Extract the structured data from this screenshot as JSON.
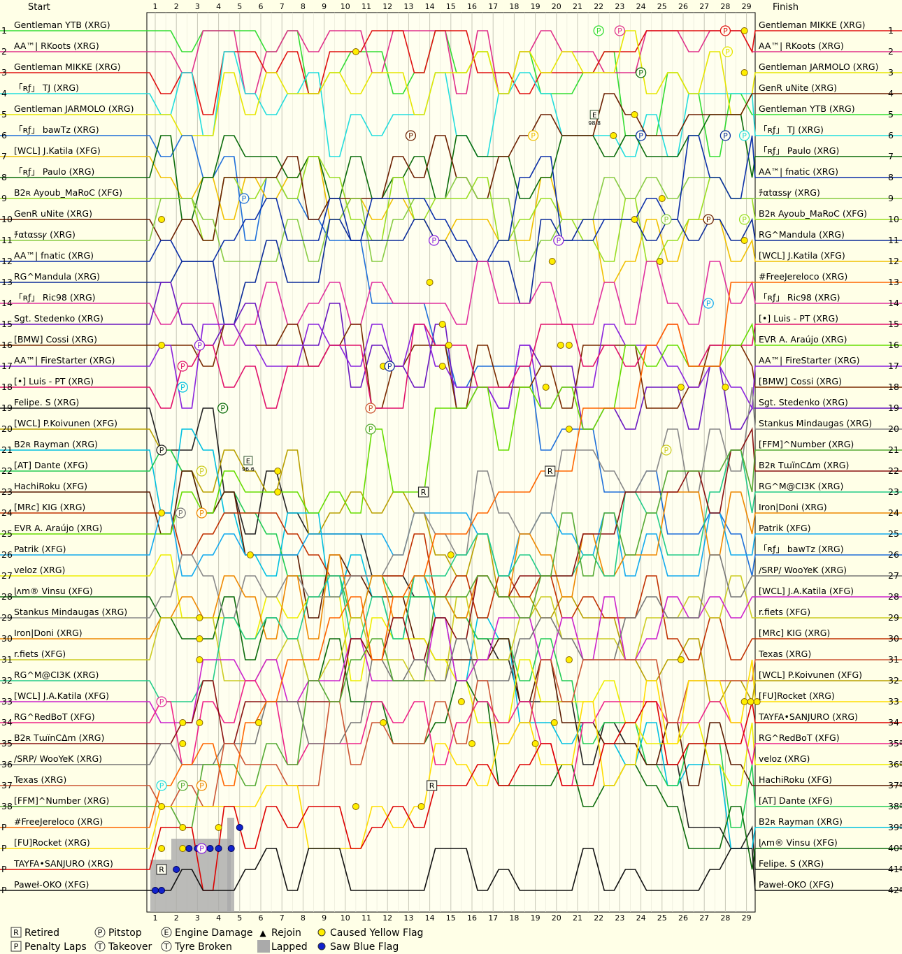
{
  "chart_data": {
    "type": "line",
    "title": "",
    "header": {
      "start": "Start",
      "finish": "Finish"
    },
    "laps": 29,
    "lap_labels": [
      "1",
      "2",
      "3",
      "4",
      "5",
      "6",
      "7",
      "8",
      "9",
      "10",
      "11",
      "12",
      "13",
      "14",
      "15",
      "16",
      "17",
      "18",
      "19",
      "20",
      "21",
      "22",
      "23",
      "24",
      "25",
      "26",
      "27",
      "28",
      "29"
    ],
    "start_positions": [
      "1",
      "2",
      "3",
      "4",
      "5",
      "6",
      "7",
      "8",
      "9",
      "10",
      "11",
      "12",
      "13",
      "14",
      "15",
      "16",
      "17",
      "18",
      "19",
      "20",
      "21",
      "22",
      "23",
      "24",
      "25",
      "26",
      "27",
      "28",
      "29",
      "30",
      "31",
      "32",
      "33",
      "34",
      "35",
      "36",
      "37",
      "38",
      "P",
      "P",
      "P",
      "P"
    ],
    "finish_positions": [
      "1",
      "2",
      "3",
      "4",
      "5",
      "6",
      "7",
      "8",
      "9",
      "10",
      "11",
      "12",
      "13",
      "14",
      "15",
      "16",
      "17",
      "18",
      "19",
      "20",
      "21",
      "22",
      "23",
      "24",
      "25",
      "26",
      "27",
      "28",
      "29",
      "30",
      "31",
      "32",
      "33",
      "34",
      "35ª",
      "36ª",
      "37ª",
      "38ª",
      "39ª",
      "40ª",
      "41ª",
      "42ª"
    ],
    "start_grid": [
      {
        "name": "Gentleman YTB (XRG)",
        "color": "#33dd33"
      },
      {
        "name": "AA™| RKoots (XRG)",
        "color": "#e0308a"
      },
      {
        "name": "Gentleman MIKKE (XRG)",
        "color": "#e01010"
      },
      {
        "name": "「ʀƒ」 TJ (XRG)",
        "color": "#22dddd"
      },
      {
        "name": "Gentleman JARMOLO (XRG)",
        "color": "#e6e600"
      },
      {
        "name": "「ʀƒ」 bawTz (XRG)",
        "color": "#1e6fd9"
      },
      {
        "name": "[WCL] J.Katila (XFG)",
        "color": "#f0c000"
      },
      {
        "name": "「ʀƒ」 Paulo (XRG)",
        "color": "#0a6b0a"
      },
      {
        "name": "B2ʀ Ayoub_MaRoC (XFG)",
        "color": "#99dd22"
      },
      {
        "name": "GenR uNite (XRG)",
        "color": "#6b1f00"
      },
      {
        "name": "ﾁαtαssꝩ (XRG)",
        "color": "#88cc44"
      },
      {
        "name": "AA™| fnatic (XRG)",
        "color": "#0b2fa8"
      },
      {
        "name": "RG^Mandula (XRG)",
        "color": "#0b2b99"
      },
      {
        "name": "「ʀƒ」 Ric98 (XRG)",
        "color": "#e0309e"
      },
      {
        "name": "Sgt. Stedenko (XRG)",
        "color": "#6a17c0"
      },
      {
        "name": "[BMW] Cossi (XRG)",
        "color": "#7a2a00"
      },
      {
        "name": "AA™| FireStarter (XRG)",
        "color": "#8a22dd"
      },
      {
        "name": "[•] Luis - PT (XRG)",
        "color": "#e0106a"
      },
      {
        "name": "Felipe. S (XRG)",
        "color": "#222222"
      },
      {
        "name": "[WCL] P.Koivunen (XFG)",
        "color": "#b8a000"
      },
      {
        "name": "B2ʀ Rayman (XRG)",
        "color": "#00c0e0"
      },
      {
        "name": "[AT] Dante (XFG)",
        "color": "#22cc55"
      },
      {
        "name": "HachiRoku (XFG)",
        "color": "#5a1a00"
      },
      {
        "name": "[MRc] KIG (XRG)",
        "color": "#c03000"
      },
      {
        "name": "EVR A. Araújo (XRG)",
        "color": "#66dd00"
      },
      {
        "name": "Patrik (XFG)",
        "color": "#11aaee"
      },
      {
        "name": "veloz (XRG)",
        "color": "#eeee00"
      },
      {
        "name": "ɭʌm® Vinsu (XFG)",
        "color": "#0b6b0b"
      },
      {
        "name": "Stankus Mindaugas (XRG)",
        "color": "#888888"
      },
      {
        "name": "Iron|Doni (XRG)",
        "color": "#ee8800"
      },
      {
        "name": "r.fiets (XFG)",
        "color": "#cccc22"
      },
      {
        "name": "RG^M@CI3K (XRG)",
        "color": "#22cc88"
      },
      {
        "name": "[WCL] J.A.Katila (XFG)",
        "color": "#cc22cc"
      },
      {
        "name": "RG^RedBoT (XFG)",
        "color": "#ee2288"
      },
      {
        "name": "B2ʀ TɯïnCΔm (XRG)",
        "color": "#8a1010"
      },
      {
        "name": "/SRP/ WooYeK (XRG)",
        "color": "#777777"
      },
      {
        "name": "Texas (XRG)",
        "color": "#cc5533"
      },
      {
        "name": "[FFM]^Number (XRG)",
        "color": "#55aa33"
      },
      {
        "name": "#FreeJereloco (XRG)",
        "color": "#ff6600"
      },
      {
        "name": "[FU]Rocket (XRG)",
        "color": "#ffdd00"
      },
      {
        "name": "TAYFA•SANJURO (XRG)",
        "color": "#dd0000"
      },
      {
        "name": "Paweł-OKO (XFG)",
        "color": "#111111"
      }
    ],
    "finish_order": [
      {
        "name": "Gentleman MIKKE (XRG)",
        "color": "#e01010"
      },
      {
        "name": "AA™| RKoots (XRG)",
        "color": "#e0308a"
      },
      {
        "name": "Gentleman JARMOLO (XRG)",
        "color": "#e6e600"
      },
      {
        "name": "GenR uNite (XRG)",
        "color": "#6b1f00"
      },
      {
        "name": "Gentleman YTB (XRG)",
        "color": "#33dd33"
      },
      {
        "name": "「ʀƒ」 TJ (XRG)",
        "color": "#22dddd"
      },
      {
        "name": "「ʀƒ」 Paulo (XRG)",
        "color": "#0a6b0a"
      },
      {
        "name": "AA™| fnatic (XRG)",
        "color": "#0b2fa8"
      },
      {
        "name": "ﾁαtαssꝩ (XRG)",
        "color": "#88cc44"
      },
      {
        "name": "B2ʀ Ayoub_MaRoC (XFG)",
        "color": "#99dd22"
      },
      {
        "name": "RG^Mandula (XRG)",
        "color": "#0b2b99"
      },
      {
        "name": "[WCL] J.Katila (XFG)",
        "color": "#f0c000"
      },
      {
        "name": "#FreeJereloco (XRG)",
        "color": "#ff6600"
      },
      {
        "name": "「ʀƒ」 Ric98 (XRG)",
        "color": "#e0309e"
      },
      {
        "name": "[•] Luis - PT (XRG)",
        "color": "#e0106a"
      },
      {
        "name": "EVR A. Araújo (XRG)",
        "color": "#66dd00"
      },
      {
        "name": "AA™| FireStarter (XRG)",
        "color": "#8a22dd"
      },
      {
        "name": "[BMW] Cossi (XRG)",
        "color": "#7a2a00"
      },
      {
        "name": "Sgt. Stedenko (XRG)",
        "color": "#6a17c0"
      },
      {
        "name": "Stankus Mindaugas (XRG)",
        "color": "#888888"
      },
      {
        "name": "[FFM]^Number (XRG)",
        "color": "#55aa33"
      },
      {
        "name": "B2ʀ TɯïnCΔm (XRG)",
        "color": "#8a1010"
      },
      {
        "name": "RG^M@CI3K (XRG)",
        "color": "#22cc88"
      },
      {
        "name": "Iron|Doni (XRG)",
        "color": "#ee8800"
      },
      {
        "name": "Patrik (XFG)",
        "color": "#11aaee"
      },
      {
        "name": "「ʀƒ」 bawTz (XRG)",
        "color": "#1e6fd9"
      },
      {
        "name": "/SRP/ WooYeK (XRG)",
        "color": "#777777"
      },
      {
        "name": "[WCL] J.A.Katila (XFG)",
        "color": "#cc22cc"
      },
      {
        "name": "r.fiets (XFG)",
        "color": "#cccc22"
      },
      {
        "name": "[MRc] KIG (XRG)",
        "color": "#c03000"
      },
      {
        "name": "Texas (XRG)",
        "color": "#cc5533"
      },
      {
        "name": "[WCL] P.Koivunen (XFG)",
        "color": "#b8a000"
      },
      {
        "name": "[FU]Rocket (XRG)",
        "color": "#ffdd00"
      },
      {
        "name": "TAYFA•SANJURO (XRG)",
        "color": "#dd0000"
      },
      {
        "name": "RG^RedBoT (XFG)",
        "color": "#ee2288"
      },
      {
        "name": "veloz (XRG)",
        "color": "#eeee00"
      },
      {
        "name": "HachiRoku (XFG)",
        "color": "#5a1a00"
      },
      {
        "name": "[AT] Dante (XFG)",
        "color": "#22cc55"
      },
      {
        "name": "B2ʀ Rayman (XRG)",
        "color": "#00c0e0"
      },
      {
        "name": "ɭʌm® Vinsu (XFG)",
        "color": "#0b6b0b"
      },
      {
        "name": "Felipe. S (XRG)",
        "color": "#222222"
      },
      {
        "name": "Paweł-OKO (XFG)",
        "color": "#111111"
      }
    ],
    "markers": {
      "retired": [
        {
          "lap": 1.3,
          "pos": 41
        },
        {
          "lap": 13.7,
          "pos": 23
        },
        {
          "lap": 14.1,
          "pos": 37
        },
        {
          "lap": 19.7,
          "pos": 22
        }
      ],
      "pitstop": [
        {
          "lap": 22,
          "pos": 1,
          "color": "#33dd33"
        },
        {
          "lap": 23,
          "pos": 1,
          "color": "#e0308a"
        },
        {
          "lap": 28,
          "pos": 1,
          "color": "#e01010"
        },
        {
          "lap": 28.1,
          "pos": 2,
          "color": "#e6e600"
        },
        {
          "lap": 24,
          "pos": 3,
          "color": "#0a6b0a"
        },
        {
          "lap": 13.1,
          "pos": 6,
          "color": "#6b1f00"
        },
        {
          "lap": 18.9,
          "pos": 6,
          "color": "#f0c000"
        },
        {
          "lap": 24,
          "pos": 6,
          "color": "#0b2fa8"
        },
        {
          "lap": 28,
          "pos": 6,
          "color": "#0b2b99"
        },
        {
          "lap": 28.9,
          "pos": 6,
          "color": "#22dddd"
        },
        {
          "lap": 5.2,
          "pos": 9,
          "color": "#1e6fd9"
        },
        {
          "lap": 25.2,
          "pos": 10,
          "color": "#88cc44"
        },
        {
          "lap": 27.2,
          "pos": 10,
          "color": "#6b1f00"
        },
        {
          "lap": 28.9,
          "pos": 10,
          "color": "#99dd22"
        },
        {
          "lap": 14.2,
          "pos": 11,
          "color": "#8a22dd"
        },
        {
          "lap": 20.1,
          "pos": 11,
          "color": "#8a22dd"
        },
        {
          "lap": 27.2,
          "pos": 14,
          "color": "#11aaee"
        },
        {
          "lap": 3.1,
          "pos": 16,
          "color": "#8a22dd"
        },
        {
          "lap": 12.1,
          "pos": 17,
          "color": "#0b2b99"
        },
        {
          "lap": 2.3,
          "pos": 17,
          "color": "#e0106a"
        },
        {
          "lap": 2.3,
          "pos": 18,
          "color": "#00c0e0"
        },
        {
          "lap": 11.2,
          "pos": 19,
          "color": "#cc5533"
        },
        {
          "lap": 4.2,
          "pos": 19,
          "color": "#0a6b0a"
        },
        {
          "lap": 11.2,
          "pos": 20,
          "color": "#55aa33"
        },
        {
          "lap": 1.3,
          "pos": 21,
          "color": "#222222"
        },
        {
          "lap": 25.2,
          "pos": 21,
          "color": "#cccc22"
        },
        {
          "lap": 3.2,
          "pos": 22,
          "color": "#cccc22"
        },
        {
          "lap": 3.2,
          "pos": 24,
          "color": "#ee8800"
        },
        {
          "lap": 2.2,
          "pos": 24,
          "color": "#777777"
        },
        {
          "lap": 1.3,
          "pos": 33,
          "color": "#e0309e"
        },
        {
          "lap": 1.3,
          "pos": 37,
          "color": "#22dddd"
        },
        {
          "lap": 2.3,
          "pos": 37,
          "color": "#55aa33"
        },
        {
          "lap": 3.2,
          "pos": 37,
          "color": "#ee8800"
        },
        {
          "lap": 3.2,
          "pos": 40,
          "color": "#8a22dd"
        }
      ],
      "engine_damage": [
        {
          "lap": 21.8,
          "pos": 5,
          "label": "98.8"
        },
        {
          "lap": 5.4,
          "pos": 21.5,
          "label": "96.6"
        }
      ],
      "caused_yellow": [
        {
          "lap": 10.5,
          "pos": 2
        },
        {
          "lap": 28.9,
          "pos": 1
        },
        {
          "lap": 28.9,
          "pos": 3
        },
        {
          "lap": 23.7,
          "pos": 5
        },
        {
          "lap": 22.7,
          "pos": 6
        },
        {
          "lap": 28.9,
          "pos": 6
        },
        {
          "lap": 25,
          "pos": 9
        },
        {
          "lap": 1.3,
          "pos": 10
        },
        {
          "lap": 23.7,
          "pos": 10
        },
        {
          "lap": 28.9,
          "pos": 11
        },
        {
          "lap": 24.9,
          "pos": 12
        },
        {
          "lap": 19.8,
          "pos": 12
        },
        {
          "lap": 14,
          "pos": 13
        },
        {
          "lap": 14.6,
          "pos": 15
        },
        {
          "lap": 14.9,
          "pos": 16
        },
        {
          "lap": 20.2,
          "pos": 16
        },
        {
          "lap": 20.6,
          "pos": 16
        },
        {
          "lap": 1.3,
          "pos": 16
        },
        {
          "lap": 11.8,
          "pos": 17
        },
        {
          "lap": 14.6,
          "pos": 17
        },
        {
          "lap": 19.5,
          "pos": 18
        },
        {
          "lap": 25.9,
          "pos": 18
        },
        {
          "lap": 28,
          "pos": 18
        },
        {
          "lap": 20.6,
          "pos": 20
        },
        {
          "lap": 6.8,
          "pos": 22
        },
        {
          "lap": 6.8,
          "pos": 23
        },
        {
          "lap": 1.3,
          "pos": 24
        },
        {
          "lap": 5.5,
          "pos": 26
        },
        {
          "lap": 15,
          "pos": 26
        },
        {
          "lap": 3.1,
          "pos": 29
        },
        {
          "lap": 3.1,
          "pos": 30
        },
        {
          "lap": 3.1,
          "pos": 31
        },
        {
          "lap": 25.9,
          "pos": 31
        },
        {
          "lap": 20.6,
          "pos": 31
        },
        {
          "lap": 2.3,
          "pos": 34
        },
        {
          "lap": 3.1,
          "pos": 34
        },
        {
          "lap": 5.9,
          "pos": 34
        },
        {
          "lap": 11.8,
          "pos": 34
        },
        {
          "lap": 19.9,
          "pos": 34
        },
        {
          "lap": 15.5,
          "pos": 33
        },
        {
          "lap": 16,
          "pos": 35
        },
        {
          "lap": 19,
          "pos": 35
        },
        {
          "lap": 2.3,
          "pos": 35
        },
        {
          "lap": 1.3,
          "pos": 38
        },
        {
          "lap": 10.5,
          "pos": 38
        },
        {
          "lap": 13.6,
          "pos": 38
        },
        {
          "lap": 2.3,
          "pos": 39
        },
        {
          "lap": 4,
          "pos": 39
        },
        {
          "lap": 1.3,
          "pos": 40
        },
        {
          "lap": 2.3,
          "pos": 40
        },
        {
          "lap": 1.3,
          "pos": 41
        },
        {
          "lap": 28.9,
          "pos": 33
        },
        {
          "lap": 29.2,
          "pos": 33
        },
        {
          "lap": 29.5,
          "pos": 33
        }
      ],
      "saw_blue": [
        {
          "lap": 1,
          "pos": 42
        },
        {
          "lap": 1.3,
          "pos": 42
        },
        {
          "lap": 2,
          "pos": 41
        },
        {
          "lap": 2.6,
          "pos": 40
        },
        {
          "lap": 3,
          "pos": 40
        },
        {
          "lap": 3.6,
          "pos": 40
        },
        {
          "lap": 4,
          "pos": 40
        },
        {
          "lap": 4.6,
          "pos": 40
        },
        {
          "lap": 5,
          "pos": 39
        }
      ]
    },
    "legend": [
      {
        "icon": "R",
        "label": "Retired"
      },
      {
        "icon": "P",
        "label": "Pitstop"
      },
      {
        "icon": "E",
        "label": "Engine Damage"
      },
      {
        "icon": "▲",
        "label": "Rejoin"
      },
      {
        "icon": "●",
        "label": "Caused Yellow Flag",
        "color": "#ffee00"
      },
      {
        "icon": "P",
        "label": "Penalty Laps"
      },
      {
        "icon": "T",
        "label": "Takeover"
      },
      {
        "icon": "T",
        "label": "Tyre Broken"
      },
      {
        "icon": "■",
        "label": "Lapped",
        "color": "#aaaaaa"
      },
      {
        "icon": "●",
        "label": "Saw Blue Flag",
        "color": "#1122cc"
      }
    ]
  }
}
